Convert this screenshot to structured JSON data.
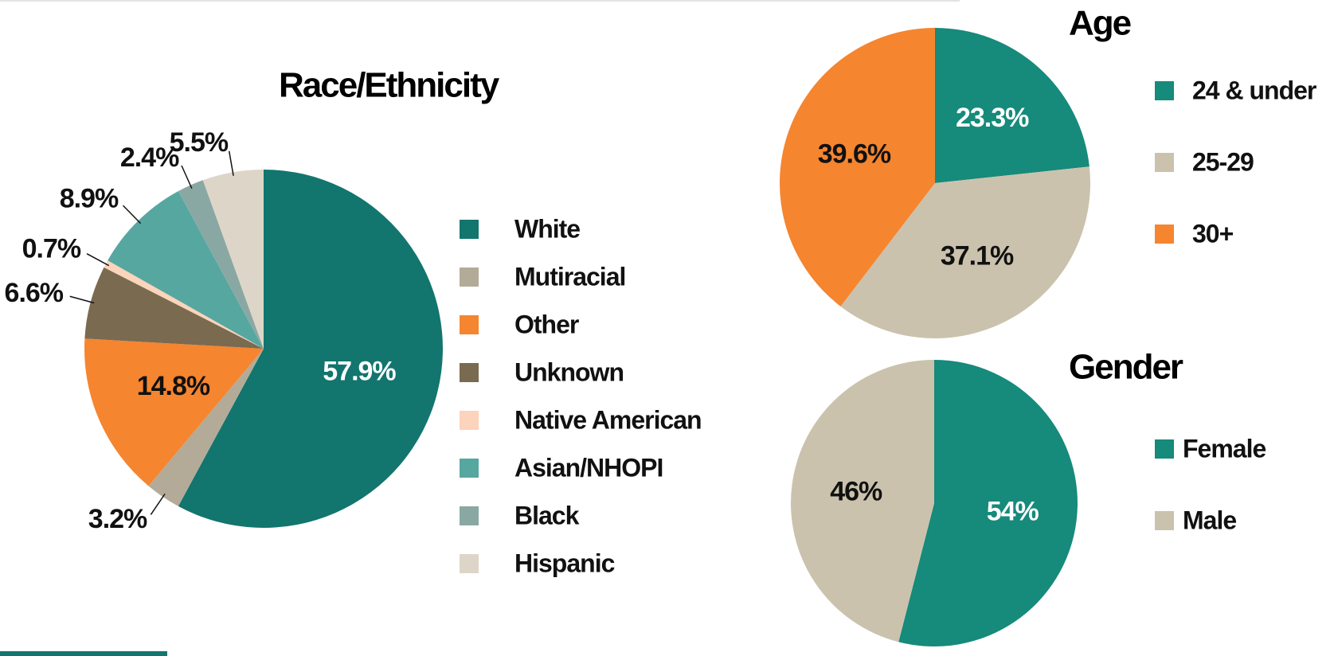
{
  "chart_data": [
    {
      "type": "pie",
      "title": "Race/Ethnicity",
      "categories": [
        "White",
        "Mutiracial",
        "Other",
        "Unknown",
        "Native American",
        "Asian/NHOPI",
        "Black",
        "Hispanic"
      ],
      "values": [
        57.9,
        3.2,
        14.8,
        6.6,
        0.7,
        8.9,
        2.4,
        5.5
      ],
      "value_labels": [
        "57.9%",
        "3.2%",
        "14.8%",
        "6.6%",
        "0.7%",
        "8.9%",
        "2.4%",
        "5.5%"
      ],
      "colors": [
        "#12756e",
        "#b3ab98",
        "#f5852f",
        "#7a6a50",
        "#fcd3bb",
        "#56a7a0",
        "#8aa8a3",
        "#ddd6c8"
      ]
    },
    {
      "type": "pie",
      "title": "Age",
      "categories": [
        "24 & under",
        "25-29",
        "30+"
      ],
      "values": [
        23.3,
        37.1,
        39.6
      ],
      "value_labels": [
        "23.3%",
        "37.1%",
        "39.6%"
      ],
      "colors": [
        "#168a7b",
        "#cbc2ad",
        "#f5852f"
      ]
    },
    {
      "type": "pie",
      "title": "Gender",
      "categories": [
        "Female",
        "Male"
      ],
      "values": [
        54,
        46
      ],
      "value_labels": [
        "54%",
        "46%"
      ],
      "colors": [
        "#168a7b",
        "#cbc2ad"
      ]
    }
  ]
}
